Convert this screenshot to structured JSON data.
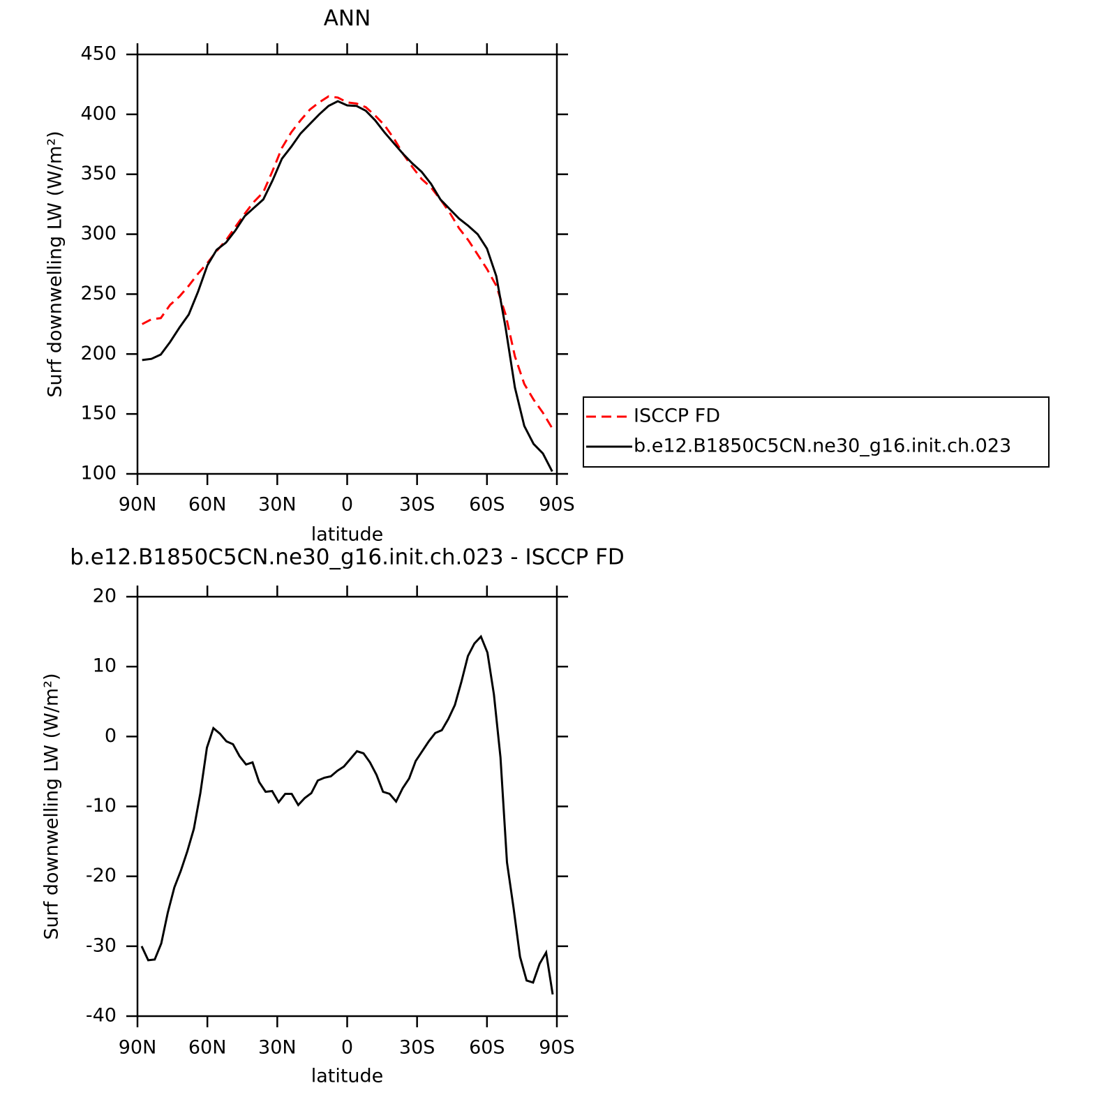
{
  "chart_data": [
    {
      "type": "line",
      "title": "ANN",
      "xlabel": "latitude",
      "ylabel": "Surf downwelling LW (W/m²)",
      "x": [
        88,
        84,
        80,
        76,
        72,
        68,
        64,
        60,
        56,
        52,
        48,
        44,
        40,
        36,
        32,
        28,
        24,
        20,
        16,
        12,
        8,
        4,
        0,
        -4,
        -8,
        -12,
        -16,
        -20,
        -24,
        -28,
        -32,
        -36,
        -40,
        -44,
        -48,
        -52,
        -56,
        -60,
        -64,
        -68,
        -72,
        -76,
        -80,
        -84,
        -88
      ],
      "series": [
        {
          "name": "ISCCP FD",
          "color": "#ff0000",
          "dash": true,
          "values": [
            225,
            229,
            230,
            241,
            248,
            257,
            267,
            276,
            286,
            295,
            306,
            317,
            327,
            335,
            353,
            372,
            385,
            395,
            404,
            410,
            415,
            414,
            410,
            409,
            406,
            399,
            391,
            380,
            367,
            356,
            346,
            339,
            329,
            318,
            305,
            295,
            283,
            271,
            257,
            233,
            198,
            175,
            162,
            151,
            138
          ]
        },
        {
          "name": "b.e12.B1850C5CN.ne30_g16.init.ch.023",
          "color": "#000000",
          "dash": false,
          "values": [
            195,
            196,
            199.6,
            210,
            222,
            233,
            252,
            274,
            287,
            293,
            303,
            315,
            322,
            329,
            345,
            363,
            373,
            384,
            392,
            400,
            407,
            411,
            407.5,
            407,
            403,
            395,
            385,
            376,
            367,
            359,
            352,
            342,
            329,
            321,
            313,
            307,
            300,
            288,
            265,
            222,
            172,
            140,
            125,
            117,
            102
          ]
        }
      ],
      "xlim": [
        90,
        -90
      ],
      "xticks": [
        {
          "value": 90,
          "label": "90N"
        },
        {
          "value": 60,
          "label": "60N"
        },
        {
          "value": 30,
          "label": "30N"
        },
        0,
        {
          "value": -30,
          "label": "30S"
        },
        {
          "value": -60,
          "label": "60S"
        },
        {
          "value": -90,
          "label": "90S"
        }
      ],
      "ylim": [
        100,
        450
      ],
      "yticks": [
        100,
        150,
        200,
        250,
        300,
        350,
        400,
        450
      ],
      "legend": "right"
    },
    {
      "type": "line",
      "title": "b.e12.B1850C5CN.ne30_g16.init.ch.023 - ISCCP FD",
      "xlabel": "latitude",
      "ylabel": "Surf downwelling LW (W/m²)",
      "x": [
        88.2,
        85.4,
        82.6,
        79.8,
        77.0,
        74.2,
        71.4,
        68.6,
        65.8,
        63.0,
        60.2,
        57.4,
        54.6,
        51.8,
        49.0,
        46.2,
        43.4,
        40.6,
        37.8,
        35.0,
        32.2,
        29.4,
        26.6,
        23.8,
        21.0,
        18.2,
        15.4,
        12.6,
        9.8,
        7.0,
        4.2,
        1.4,
        -1.4,
        -4.2,
        -7.0,
        -9.8,
        -12.6,
        -15.4,
        -18.2,
        -21.0,
        -23.8,
        -26.6,
        -29.4,
        -32.2,
        -35.0,
        -37.8,
        -40.6,
        -43.4,
        -46.2,
        -49.0,
        -51.8,
        -54.6,
        -57.4,
        -60.2,
        -63.0,
        -65.8,
        -68.6,
        -71.4,
        -74.2,
        -77.0,
        -79.8,
        -82.6,
        -85.4,
        -88.2
      ],
      "series": [
        {
          "color": "#000000",
          "dash": false,
          "values": [
            -30,
            -32,
            -31.9,
            -29.6,
            -25.2,
            -21.6,
            -19.2,
            -16.4,
            -13.2,
            -8.1,
            -1.6,
            1.2,
            0.4,
            -0.7,
            -1.1,
            -2.8,
            -4.0,
            -3.7,
            -6.5,
            -7.9,
            -7.8,
            -9.4,
            -8.2,
            -8.2,
            -9.8,
            -8.8,
            -8.1,
            -6.3,
            -5.9,
            -5.7,
            -4.9,
            -4.3,
            -3.2,
            -2.1,
            -2.4,
            -3.7,
            -5.5,
            -7.9,
            -8.2,
            -9.3,
            -7.4,
            -6.0,
            -3.5,
            -2.1,
            -0.7,
            0.5,
            0.9,
            2.5,
            4.5,
            7.8,
            11.5,
            13.3,
            14.3,
            12.0,
            6.0,
            -3.0,
            -18.0,
            -24.5,
            -31.5,
            -34.9,
            -35.2,
            -32.5,
            -30.9,
            -36.9
          ]
        }
      ],
      "xlim": [
        90,
        -90
      ],
      "xticks": [
        {
          "value": 90,
          "label": "90N"
        },
        {
          "value": 60,
          "label": "60N"
        },
        {
          "value": 30,
          "label": "30N"
        },
        0,
        {
          "value": -30,
          "label": "30S"
        },
        {
          "value": -60,
          "label": "60S"
        },
        {
          "value": -90,
          "label": "90S"
        }
      ],
      "ylim": [
        -40,
        20
      ],
      "yticks": [
        -40,
        -30,
        -20,
        -10,
        0,
        10,
        20
      ]
    }
  ]
}
